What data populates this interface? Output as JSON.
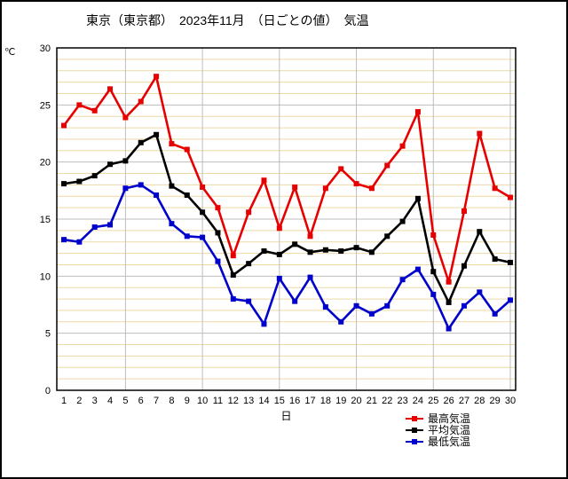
{
  "title": "東京（東京都）　2023年11月　（日ごとの値）　気温",
  "chart_data": {
    "type": "line",
    "title": "東京（東京都）　2023年11月　（日ごとの値）　気温",
    "xlabel": "日",
    "ylabel": "℃",
    "x": [
      1,
      2,
      3,
      4,
      5,
      6,
      7,
      8,
      9,
      10,
      11,
      12,
      13,
      14,
      15,
      16,
      17,
      18,
      19,
      20,
      21,
      22,
      23,
      24,
      25,
      26,
      27,
      28,
      29,
      30
    ],
    "ylim": [
      0,
      30
    ],
    "ytick_labels": [
      0,
      5,
      10,
      15,
      20,
      25,
      30
    ],
    "xticks_major": [
      5,
      10,
      15,
      20,
      25,
      30
    ],
    "grid": "minor horizontal every 1, major every 5",
    "legend_position": "bottom-right",
    "series": [
      {
        "name": "最高気温",
        "color": "#e60000",
        "values": [
          23.2,
          25.0,
          24.5,
          26.4,
          23.9,
          25.3,
          27.5,
          21.6,
          21.1,
          17.8,
          16.0,
          11.8,
          15.6,
          18.4,
          14.2,
          17.8,
          13.5,
          17.7,
          19.4,
          18.1,
          17.7,
          19.7,
          21.4,
          24.4,
          13.6,
          9.5,
          15.7,
          22.5,
          17.7,
          16.9
        ]
      },
      {
        "name": "平均気温",
        "color": "#000000",
        "values": [
          18.1,
          18.3,
          18.8,
          19.8,
          20.1,
          21.7,
          22.4,
          17.9,
          17.1,
          15.6,
          13.8,
          10.1,
          11.1,
          12.2,
          11.9,
          12.8,
          12.1,
          12.3,
          12.2,
          12.5,
          12.1,
          13.5,
          14.8,
          16.8,
          10.4,
          7.7,
          10.9,
          13.9,
          11.5,
          11.2
        ]
      },
      {
        "name": "最低気温",
        "color": "#0000cc",
        "values": [
          13.2,
          13.0,
          14.3,
          14.5,
          17.7,
          18.0,
          17.1,
          14.6,
          13.5,
          13.4,
          11.3,
          8.0,
          7.8,
          5.8,
          9.8,
          7.8,
          9.9,
          7.3,
          6.0,
          7.4,
          6.7,
          7.4,
          9.7,
          10.6,
          8.4,
          5.4,
          7.4,
          8.6,
          6.7,
          7.9
        ]
      }
    ],
    "colors": {
      "grid_minor": "#ecd9a6",
      "grid_major": "#bdbdbd",
      "axis": "#000000",
      "background": "#ffffff"
    }
  }
}
